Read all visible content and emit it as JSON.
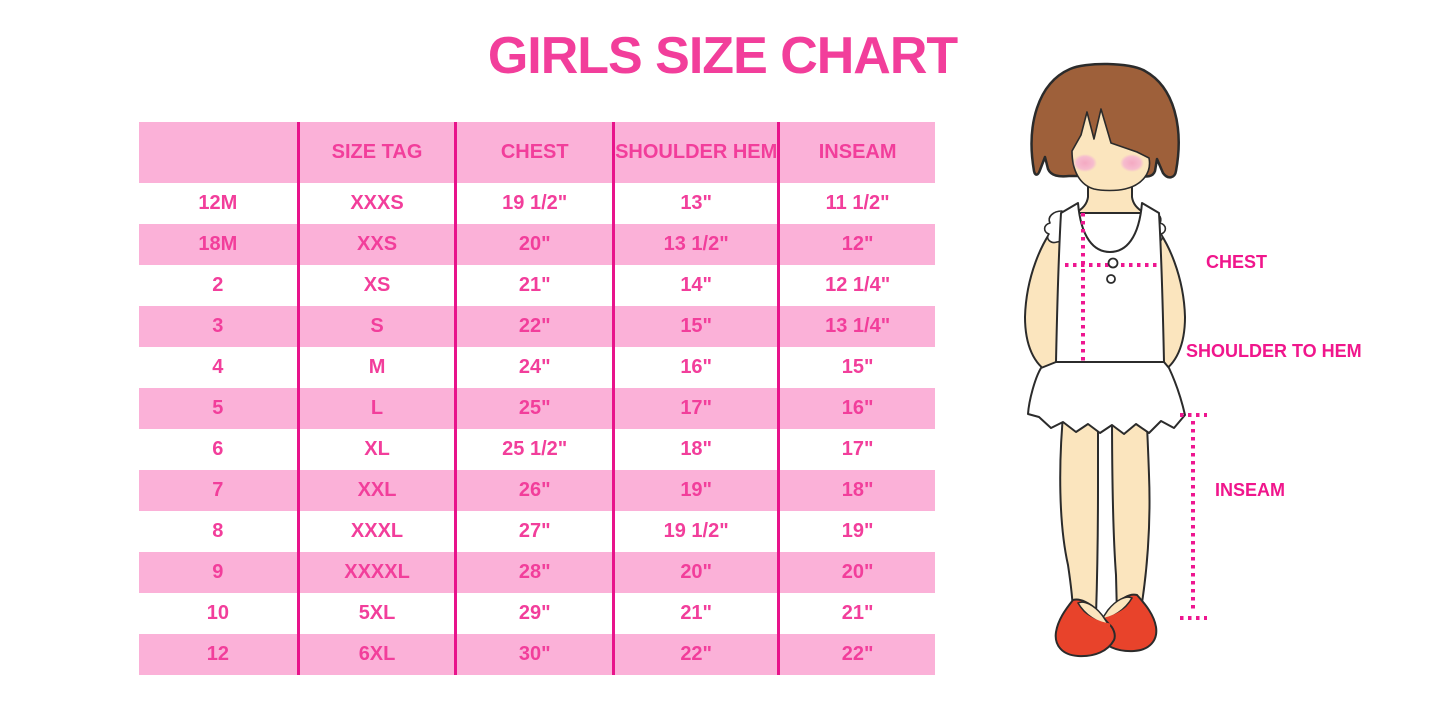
{
  "title": "GIRLS SIZE CHART",
  "chart_data": {
    "type": "table",
    "title": "GIRLS SIZE CHART",
    "columns": [
      "",
      "SIZE TAG",
      "CHEST",
      "SHOULDER HEM",
      "INSEAM"
    ],
    "rows": [
      [
        "12M",
        "XXXS",
        "19 1/2\"",
        "13\"",
        "11 1/2\""
      ],
      [
        "18M",
        "XXS",
        "20\"",
        "13 1/2\"",
        "12\""
      ],
      [
        "2",
        "XS",
        "21\"",
        "14\"",
        "12 1/4\""
      ],
      [
        "3",
        "S",
        "22\"",
        "15\"",
        "13 1/4\""
      ],
      [
        "4",
        "M",
        "24\"",
        "16\"",
        "15\""
      ],
      [
        "5",
        "L",
        "25\"",
        "17\"",
        "16\""
      ],
      [
        "6",
        "XL",
        "25 1/2\"",
        "18\"",
        "17\""
      ],
      [
        "7",
        "XXL",
        "26\"",
        "19\"",
        "18\""
      ],
      [
        "8",
        "XXXL",
        "27\"",
        "19 1/2\"",
        "19\""
      ],
      [
        "9",
        "XXXXL",
        "28\"",
        "20\"",
        "20\""
      ],
      [
        "10",
        "5XL",
        "29\"",
        "21\"",
        "21\""
      ],
      [
        "12",
        "6XL",
        "30\"",
        "22\"",
        "22\""
      ]
    ],
    "layout": {
      "alternating_row_colors": true,
      "column_separators": true
    }
  },
  "figure": {
    "description": "girl-measurement-illustration",
    "labels": {
      "chest": "CHEST",
      "shoulder_to_hem": "SHOULDER TO HEM",
      "inseam": "INSEAM"
    }
  },
  "colors": {
    "accent_text": "#F23E9B",
    "row_pink": "#FBB1D8",
    "grid_line": "#E8138B",
    "label_pink": "#F0168C",
    "dotted_line": "#EE1690",
    "hair": "#9E603A",
    "skin": "#FBE5BE",
    "blush": "#F4B3C8",
    "shoe_red": "#E8432B",
    "outline": "#2B2B2B"
  }
}
